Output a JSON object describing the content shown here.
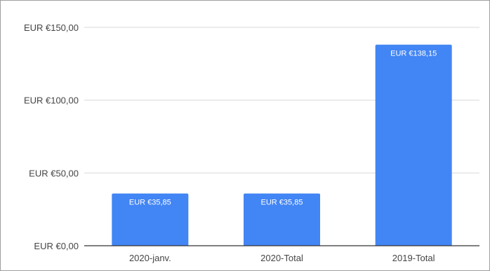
{
  "chart_data": {
    "type": "bar",
    "title": "",
    "xlabel": "",
    "ylabel": "",
    "categories": [
      "2020-janv.",
      "2020-Total",
      "2019-Total"
    ],
    "values": [
      35.85,
      35.85,
      138.15
    ],
    "data_labels": [
      "EUR €35,85",
      "EUR €35,85",
      "EUR €138,15"
    ],
    "ylim": [
      0,
      150
    ],
    "y_ticks": [
      0,
      50,
      100,
      150
    ],
    "y_tick_labels": [
      "EUR €0,00",
      "EUR €50,00",
      "EUR €100,00",
      "EUR €150,00"
    ],
    "grid": true,
    "legend": "none",
    "bar_color": "#4285f4",
    "grid_color": "#d9d9d9",
    "axis_color": "#333333"
  }
}
